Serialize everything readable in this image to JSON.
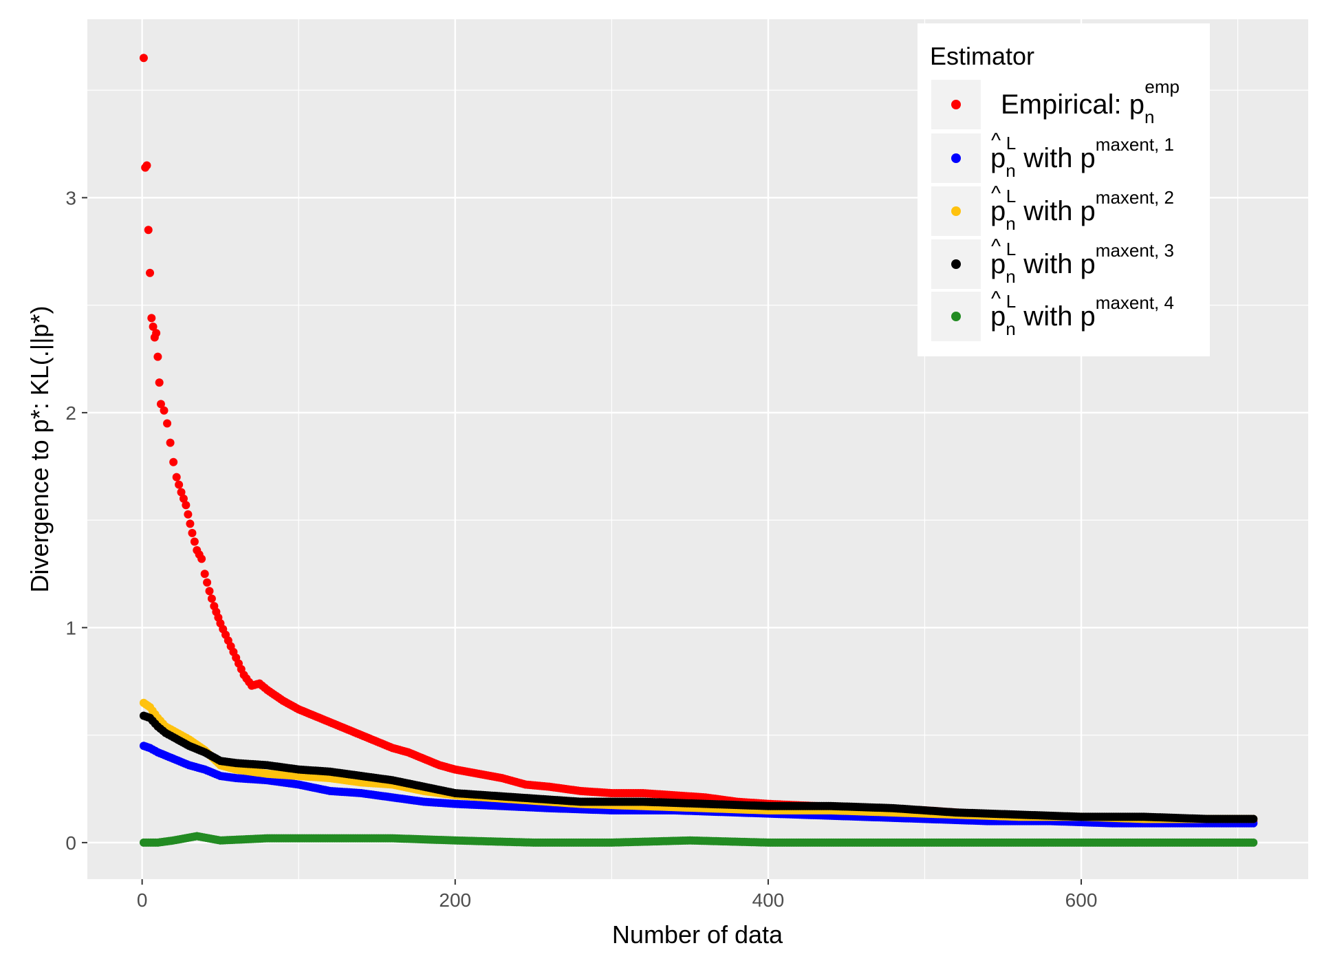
{
  "chart_data": {
    "type": "scatter",
    "title": "",
    "xlabel": "Number of data",
    "ylabel": "Divergence to p*: KL(.||p*)",
    "xlim": [
      -35,
      745
    ],
    "ylim": [
      -0.17,
      3.83
    ],
    "x_ticks": [
      0,
      200,
      400,
      600
    ],
    "x_tick_labels": [
      "0",
      "200",
      "400",
      "600"
    ],
    "y_ticks": [
      0,
      1,
      2,
      3
    ],
    "y_tick_labels": [
      "0",
      "1",
      "2",
      "3"
    ],
    "grid": true,
    "legend_position": "top-right",
    "legend_title": "Estimator",
    "series": [
      {
        "name": "Empirical: p_n^emp",
        "label": {
          "base": "Empirical: p",
          "sub": "n",
          "sup": "emp",
          "hat": false
        },
        "color": "#ff0000",
        "points": [
          [
            1,
            3.65
          ],
          [
            2,
            3.14
          ],
          [
            3,
            3.15
          ],
          [
            4,
            2.85
          ],
          [
            5,
            2.65
          ],
          [
            6,
            2.44
          ],
          [
            7,
            2.4
          ],
          [
            8,
            2.35
          ],
          [
            9,
            2.37
          ],
          [
            10,
            2.26
          ],
          [
            11,
            2.14
          ],
          [
            12,
            2.04
          ],
          [
            14,
            2.01
          ],
          [
            16,
            1.95
          ],
          [
            18,
            1.86
          ],
          [
            20,
            1.77
          ],
          [
            22,
            1.7
          ],
          [
            25,
            1.63
          ],
          [
            28,
            1.57
          ],
          [
            32,
            1.44
          ],
          [
            35,
            1.36
          ],
          [
            38,
            1.32
          ],
          [
            40,
            1.25
          ],
          [
            43,
            1.17
          ],
          [
            46,
            1.1
          ],
          [
            50,
            1.02
          ],
          [
            55,
            0.94
          ],
          [
            60,
            0.86
          ],
          [
            65,
            0.78
          ],
          [
            70,
            0.73
          ],
          [
            75,
            0.74
          ],
          [
            80,
            0.71
          ],
          [
            90,
            0.66
          ],
          [
            100,
            0.62
          ],
          [
            110,
            0.59
          ],
          [
            120,
            0.56
          ],
          [
            130,
            0.53
          ],
          [
            140,
            0.5
          ],
          [
            150,
            0.47
          ],
          [
            160,
            0.44
          ],
          [
            170,
            0.42
          ],
          [
            180,
            0.39
          ],
          [
            190,
            0.36
          ],
          [
            200,
            0.34
          ],
          [
            215,
            0.32
          ],
          [
            230,
            0.3
          ],
          [
            245,
            0.27
          ],
          [
            260,
            0.26
          ],
          [
            280,
            0.24
          ],
          [
            300,
            0.23
          ],
          [
            320,
            0.23
          ],
          [
            340,
            0.22
          ],
          [
            360,
            0.21
          ],
          [
            380,
            0.19
          ],
          [
            400,
            0.18
          ],
          [
            430,
            0.17
          ],
          [
            460,
            0.16
          ],
          [
            500,
            0.15
          ],
          [
            540,
            0.13
          ],
          [
            580,
            0.12
          ],
          [
            620,
            0.11
          ],
          [
            660,
            0.11
          ],
          [
            700,
            0.1
          ],
          [
            710,
            0.1
          ]
        ]
      },
      {
        "name": "p_n^L with p^maxent, 1",
        "label": {
          "base": "p",
          "sub": "n",
          "hatsup": "L",
          "hat": true,
          "rest": " with p",
          "sup": "maxent, 1"
        },
        "color": "#0000ff",
        "points": [
          [
            1,
            0.45
          ],
          [
            5,
            0.44
          ],
          [
            10,
            0.42
          ],
          [
            20,
            0.39
          ],
          [
            30,
            0.36
          ],
          [
            40,
            0.34
          ],
          [
            50,
            0.31
          ],
          [
            60,
            0.3
          ],
          [
            80,
            0.29
          ],
          [
            100,
            0.27
          ],
          [
            120,
            0.24
          ],
          [
            140,
            0.23
          ],
          [
            160,
            0.21
          ],
          [
            180,
            0.19
          ],
          [
            200,
            0.18
          ],
          [
            230,
            0.17
          ],
          [
            260,
            0.16
          ],
          [
            300,
            0.15
          ],
          [
            340,
            0.15
          ],
          [
            380,
            0.14
          ],
          [
            420,
            0.13
          ],
          [
            460,
            0.12
          ],
          [
            500,
            0.11
          ],
          [
            540,
            0.1
          ],
          [
            580,
            0.1
          ],
          [
            620,
            0.09
          ],
          [
            660,
            0.09
          ],
          [
            700,
            0.09
          ],
          [
            710,
            0.09
          ]
        ]
      },
      {
        "name": "p_n^L with p^maxent, 2",
        "label": {
          "base": "p",
          "sub": "n",
          "hatsup": "L",
          "hat": true,
          "rest": " with p",
          "sup": "maxent, 2"
        },
        "color": "#ffc20e",
        "points": [
          [
            1,
            0.65
          ],
          [
            5,
            0.63
          ],
          [
            10,
            0.58
          ],
          [
            15,
            0.54
          ],
          [
            20,
            0.52
          ],
          [
            25,
            0.5
          ],
          [
            30,
            0.48
          ],
          [
            40,
            0.43
          ],
          [
            50,
            0.36
          ],
          [
            60,
            0.34
          ],
          [
            80,
            0.32
          ],
          [
            100,
            0.31
          ],
          [
            120,
            0.3
          ],
          [
            140,
            0.28
          ],
          [
            160,
            0.27
          ],
          [
            180,
            0.24
          ],
          [
            200,
            0.22
          ],
          [
            240,
            0.2
          ],
          [
            280,
            0.18
          ],
          [
            320,
            0.17
          ],
          [
            360,
            0.16
          ],
          [
            400,
            0.15
          ],
          [
            440,
            0.15
          ],
          [
            480,
            0.14
          ],
          [
            520,
            0.13
          ],
          [
            560,
            0.12
          ],
          [
            600,
            0.12
          ],
          [
            640,
            0.11
          ],
          [
            680,
            0.11
          ],
          [
            710,
            0.11
          ]
        ]
      },
      {
        "name": "p_n^L with p^maxent, 3",
        "label": {
          "base": "p",
          "sub": "n",
          "hatsup": "L",
          "hat": true,
          "rest": " with p",
          "sup": "maxent, 3"
        },
        "color": "#000000",
        "points": [
          [
            1,
            0.59
          ],
          [
            5,
            0.58
          ],
          [
            10,
            0.54
          ],
          [
            15,
            0.51
          ],
          [
            20,
            0.49
          ],
          [
            30,
            0.45
          ],
          [
            40,
            0.42
          ],
          [
            50,
            0.38
          ],
          [
            60,
            0.37
          ],
          [
            80,
            0.36
          ],
          [
            100,
            0.34
          ],
          [
            120,
            0.33
          ],
          [
            140,
            0.31
          ],
          [
            160,
            0.29
          ],
          [
            180,
            0.26
          ],
          [
            200,
            0.23
          ],
          [
            240,
            0.21
          ],
          [
            280,
            0.19
          ],
          [
            320,
            0.19
          ],
          [
            360,
            0.18
          ],
          [
            400,
            0.17
          ],
          [
            440,
            0.17
          ],
          [
            480,
            0.16
          ],
          [
            520,
            0.14
          ],
          [
            560,
            0.13
          ],
          [
            600,
            0.12
          ],
          [
            640,
            0.12
          ],
          [
            680,
            0.11
          ],
          [
            710,
            0.11
          ]
        ]
      },
      {
        "name": "p_n^L with p^maxent, 4",
        "label": {
          "base": "p",
          "sub": "n",
          "hatsup": "L",
          "hat": true,
          "rest": " with p",
          "sup": "maxent, 4"
        },
        "color": "#228b22",
        "points": [
          [
            1,
            0.0
          ],
          [
            10,
            0.0
          ],
          [
            20,
            0.01
          ],
          [
            35,
            0.03
          ],
          [
            50,
            0.01
          ],
          [
            80,
            0.02
          ],
          [
            120,
            0.02
          ],
          [
            160,
            0.02
          ],
          [
            200,
            0.01
          ],
          [
            250,
            0.0
          ],
          [
            300,
            0.0
          ],
          [
            350,
            0.01
          ],
          [
            400,
            0.0
          ],
          [
            500,
            0.0
          ],
          [
            600,
            0.0
          ],
          [
            700,
            0.0
          ],
          [
            710,
            0.0
          ]
        ]
      }
    ]
  }
}
